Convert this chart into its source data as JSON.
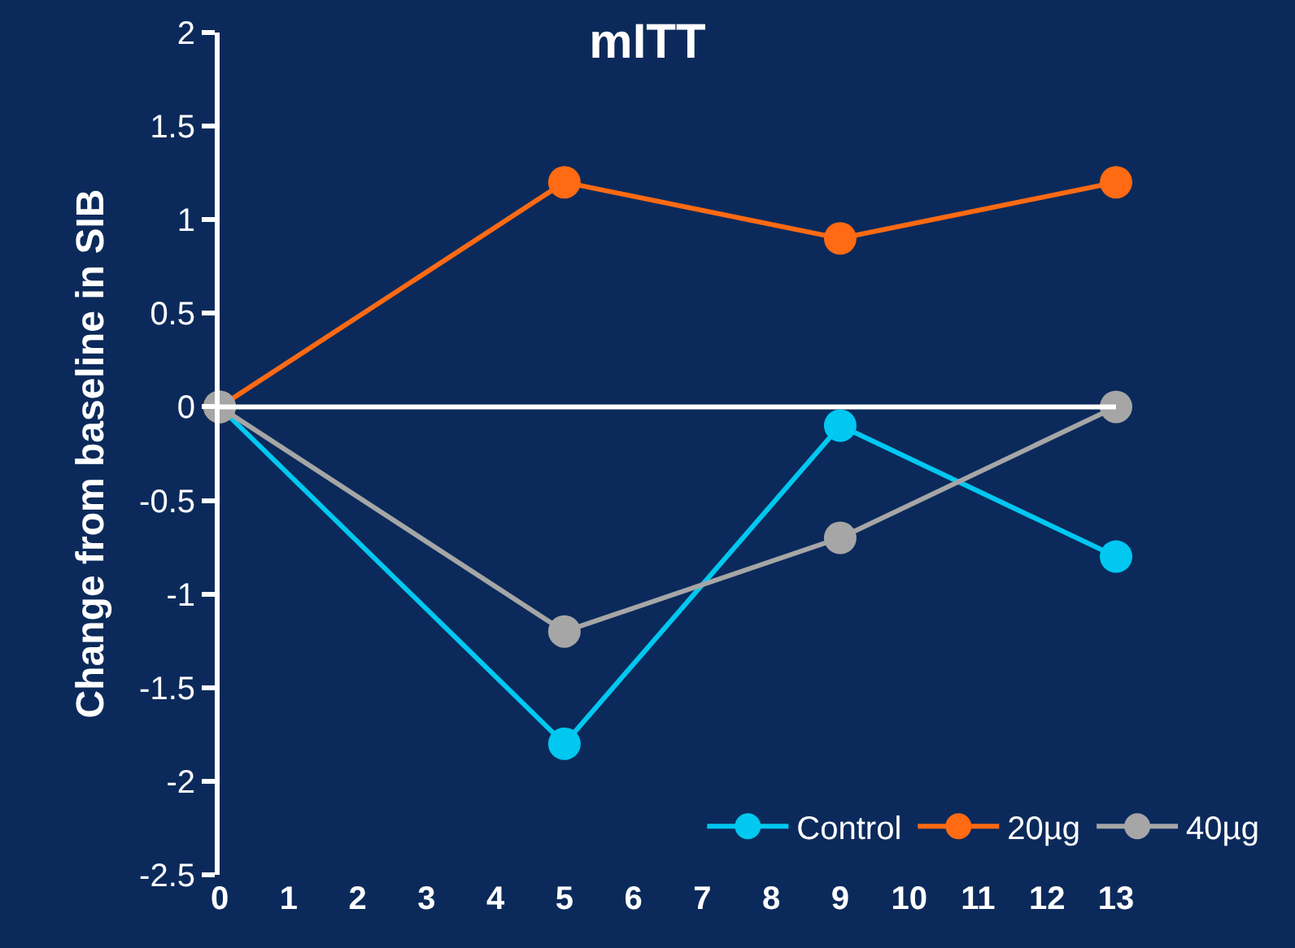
{
  "chart_data": {
    "type": "line",
    "title": "mITT",
    "ylabel": "Change from baseline in SIB",
    "x": [
      0,
      5,
      9,
      13
    ],
    "series": [
      {
        "name": "Control",
        "color": "#00c8f0",
        "values": [
          0,
          -1.8,
          -0.1,
          -0.8
        ]
      },
      {
        "name": "20µg",
        "color": "#ff6a13",
        "values": [
          0,
          1.2,
          0.9,
          1.2
        ]
      },
      {
        "name": "40µg",
        "color": "#a6a6a6",
        "values": [
          0,
          -1.2,
          -0.7,
          0
        ]
      }
    ],
    "xlim": [
      0,
      13
    ],
    "xticks": [
      0,
      1,
      2,
      3,
      4,
      5,
      6,
      7,
      8,
      9,
      10,
      11,
      12,
      13
    ],
    "ylim": [
      -2.5,
      2
    ],
    "yticks": [
      -2.5,
      -2,
      -1.5,
      -1,
      -0.5,
      0,
      0.5,
      1,
      1.5,
      2
    ],
    "ref_lines": [
      {
        "axis": "y",
        "value": 0,
        "color": "#ffffff",
        "line_style": "solid"
      }
    ],
    "grid": false,
    "legend": "bottom right",
    "marker": "circle",
    "line_style": "solid"
  }
}
